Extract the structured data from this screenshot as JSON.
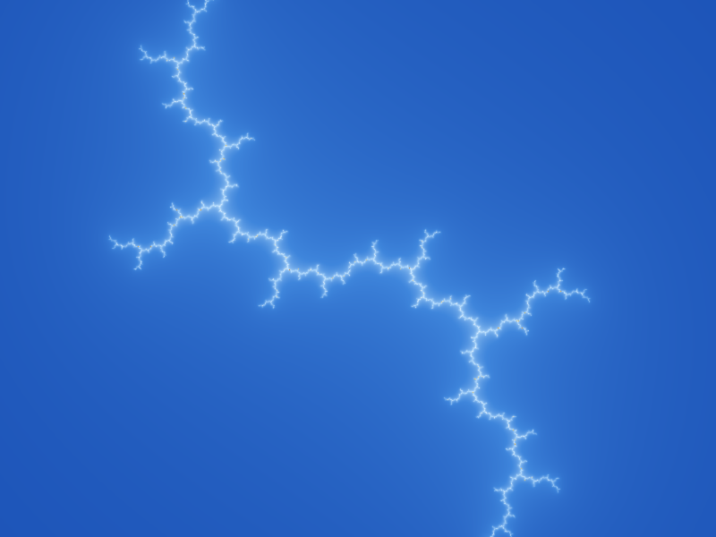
{
  "image": {
    "subject": "dendrite-julia-set",
    "palette": {
      "background_far": "#0d3da8",
      "background_near": "#3f86dc",
      "glow_light": "#bfe3ff",
      "glow_white": "#ffffff",
      "filament_gold": "#f3b51c",
      "filament_amber": "#e38a0a",
      "core_dark": "#0b1630",
      "core_blue": "#3a6fd6"
    }
  }
}
